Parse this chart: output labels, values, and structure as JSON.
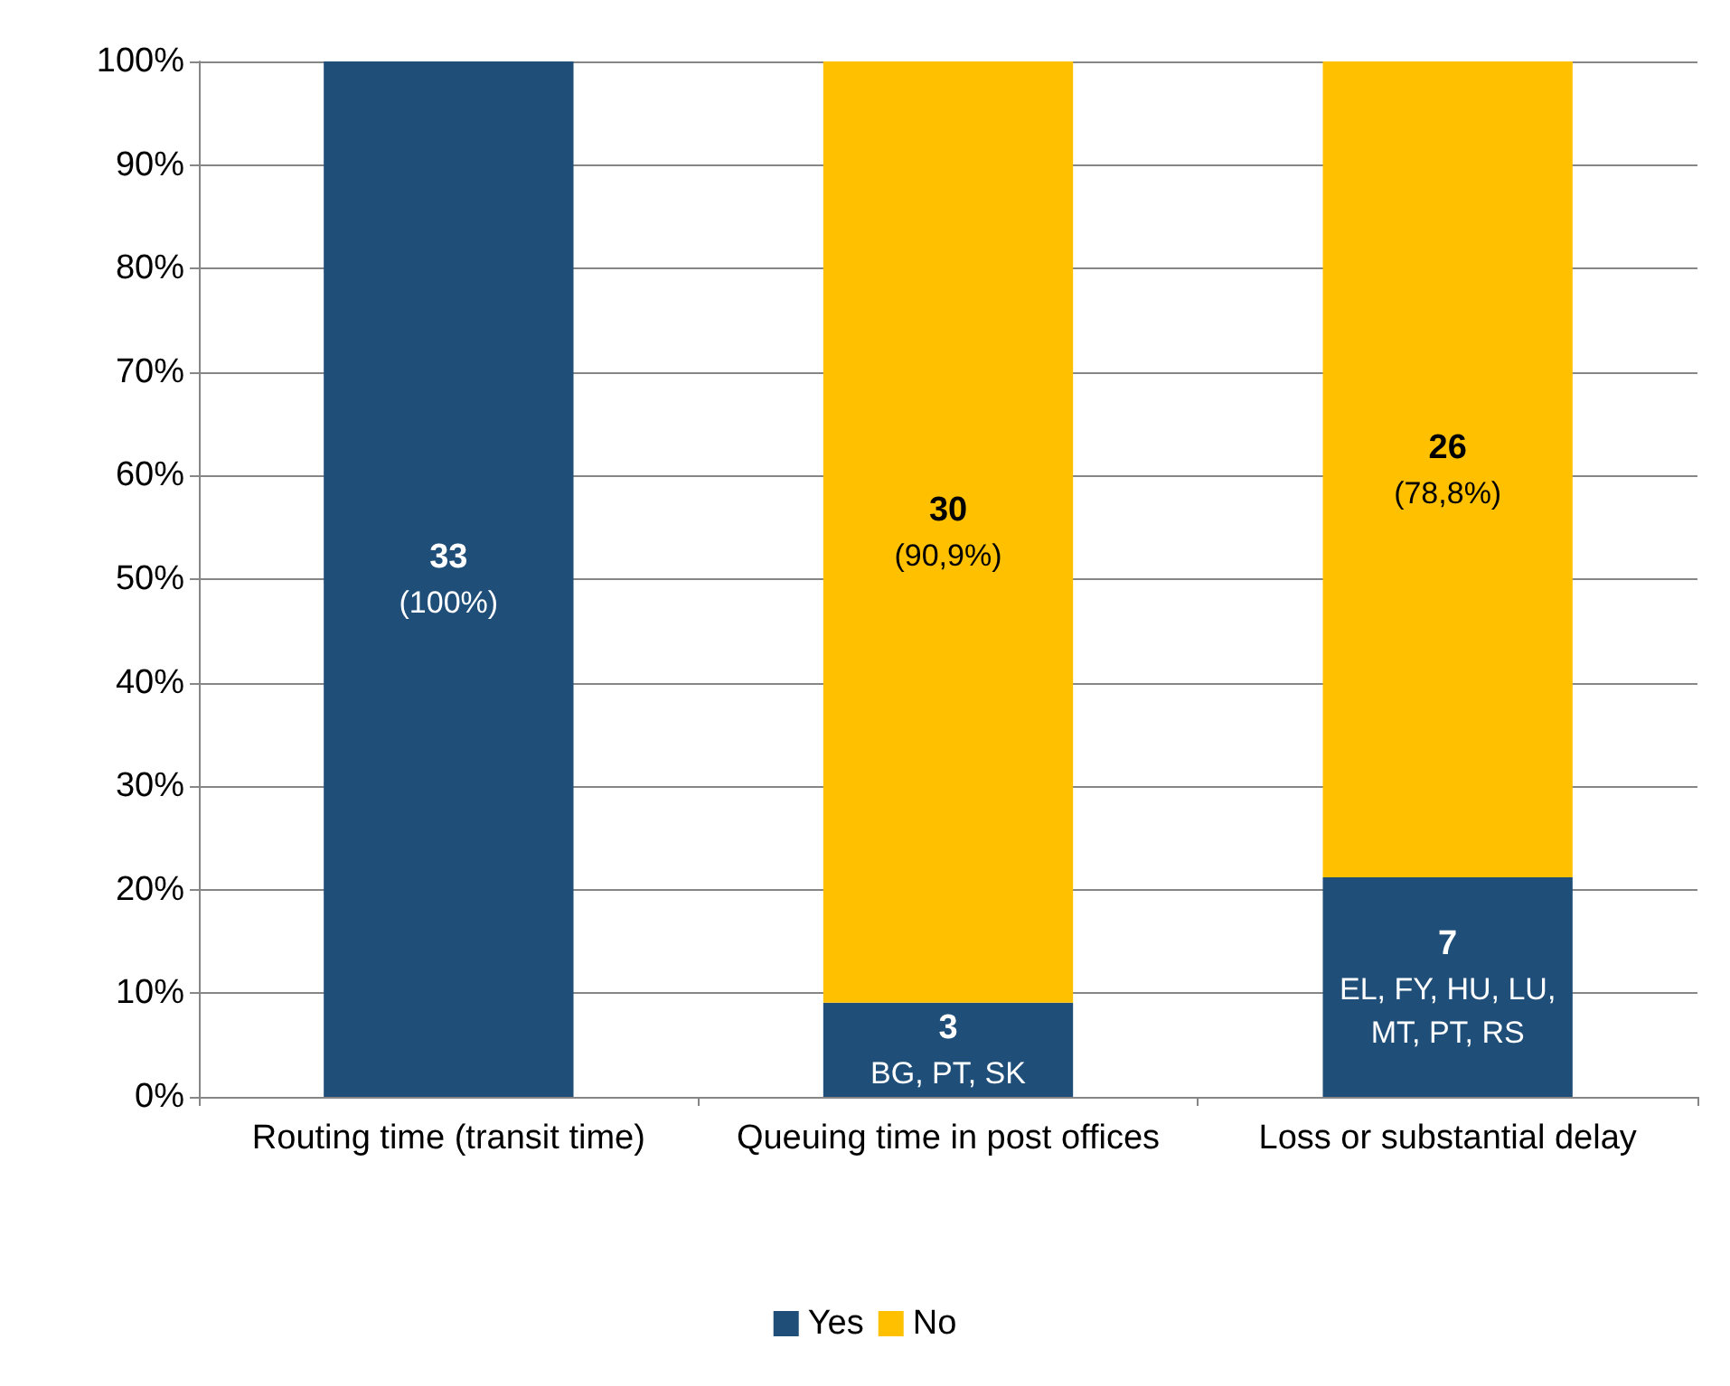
{
  "chart_data": {
    "type": "bar",
    "stacked": true,
    "categories": [
      "Routing time (transit time)",
      "Queuing time in post offices",
      "Loss or substantial delay"
    ],
    "series": [
      {
        "name": "Yes",
        "color": "#1f4e79",
        "values": [
          100,
          9.1,
          21.2
        ],
        "value_labels": [
          "33\n(100%)",
          null,
          null
        ]
      },
      {
        "name": "No",
        "color": "#ffc000",
        "values": [
          0,
          90.9,
          78.8
        ],
        "value_labels": [
          null,
          "30\n(90,9%)",
          "26\n(78,8%)"
        ]
      }
    ],
    "annotations": [
      {
        "text": "3\nBG, PT, SK",
        "x": "Queuing time in post offices",
        "y": 9.1
      },
      {
        "text": "7\nEL, FY, HU, LU, MT, PT, RS",
        "x": "Loss or substantial delay",
        "y": 21.2
      }
    ],
    "ylim": [
      0,
      100
    ],
    "yticks": [
      {
        "value": 0,
        "label": "0%"
      },
      {
        "value": 10,
        "label": "10%"
      },
      {
        "value": 20,
        "label": "20%"
      },
      {
        "value": 30,
        "label": "30%"
      },
      {
        "value": 40,
        "label": "40%"
      },
      {
        "value": 50,
        "label": "50%"
      },
      {
        "value": 60,
        "label": "60%"
      },
      {
        "value": 70,
        "label": "70%"
      },
      {
        "value": 80,
        "label": "80%"
      },
      {
        "value": 90,
        "label": "90%"
      },
      {
        "value": 100,
        "label": "100%"
      }
    ],
    "grid": "y",
    "legend": "bottom"
  }
}
